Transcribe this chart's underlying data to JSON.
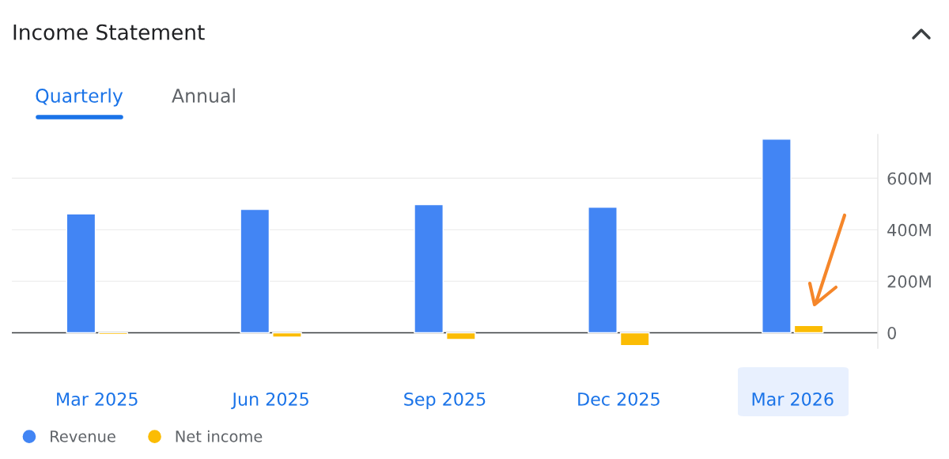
{
  "chart_data": {
    "type": "bar",
    "title": "Income Statement",
    "annotations": [
      "Quarterly",
      "Annual"
    ],
    "categories": [
      "Mar 2025",
      "Jun 2025",
      "Sep 2025",
      "Dec 2025",
      "Mar 2026"
    ],
    "series": [
      {
        "name": "Revenue",
        "color": "#4285f4",
        "values": [
          462,
          479,
          498,
          488,
          752
        ]
      },
      {
        "name": "Net income",
        "color": "#fbbc04",
        "values": [
          -7,
          -17,
          -26,
          -50,
          28
        ]
      }
    ],
    "ylim": [
      -60,
      770
    ],
    "yticks": [
      {
        "value": 0,
        "label": "0"
      },
      {
        "value": 200,
        "label": "200M"
      },
      {
        "value": 400,
        "label": "400M"
      },
      {
        "value": 600,
        "label": "600M"
      }
    ],
    "grid": "y",
    "legend": "bottom left"
  }
}
